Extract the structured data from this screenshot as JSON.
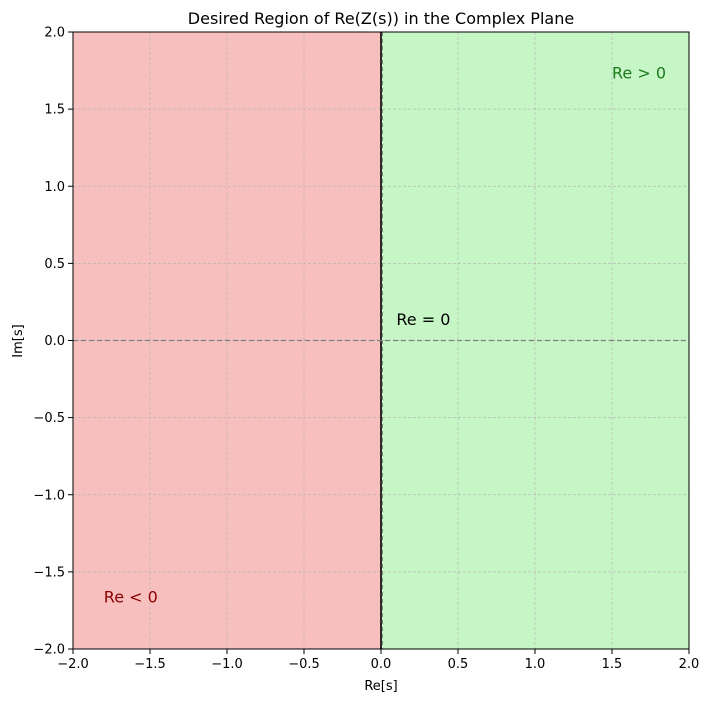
{
  "chart_data": {
    "type": "area",
    "title": "Desired Region of Re(Z(s)) in the Complex Plane",
    "xlabel": "Re[s]",
    "ylabel": "Im[s]",
    "xlim": [
      -2.0,
      2.0
    ],
    "ylim": [
      -2.0,
      2.0
    ],
    "x_ticks": [
      -2.0,
      -1.5,
      -1.0,
      -0.5,
      0.0,
      0.5,
      1.0,
      1.5,
      2.0
    ],
    "y_ticks": [
      -2.0,
      -1.5,
      -1.0,
      -0.5,
      0.0,
      0.5,
      1.0,
      1.5,
      2.0
    ],
    "x_tick_labels": [
      "−2.0",
      "−1.5",
      "−1.0",
      "−0.5",
      "0.0",
      "0.5",
      "1.0",
      "1.5",
      "2.0"
    ],
    "y_tick_labels": [
      "−2.0",
      "−1.5",
      "−1.0",
      "−0.5",
      "0.0",
      "0.5",
      "1.0",
      "1.5",
      "2.0"
    ],
    "grid": true,
    "regions": [
      {
        "x_from": -2.0,
        "x_to": 0.0,
        "color": "#f7c0bf"
      },
      {
        "x_from": 0.0,
        "x_to": 2.0,
        "color": "#c6f5c6"
      }
    ],
    "reference_lines": [
      {
        "orientation": "vertical",
        "value": 0.0,
        "style": "solid",
        "color": "#000000"
      },
      {
        "orientation": "horizontal",
        "value": 0.0,
        "style": "dashed",
        "color": "#808080"
      }
    ],
    "annotations": [
      {
        "text": "Re > 0",
        "x": 1.5,
        "y": 1.7,
        "color": "#1b7a1b"
      },
      {
        "text": "Re = 0",
        "x": 0.1,
        "y": 0.1,
        "color": "#000000"
      },
      {
        "text": "Re < 0",
        "x": -1.8,
        "y": -1.7,
        "color": "#8b0000"
      }
    ]
  }
}
